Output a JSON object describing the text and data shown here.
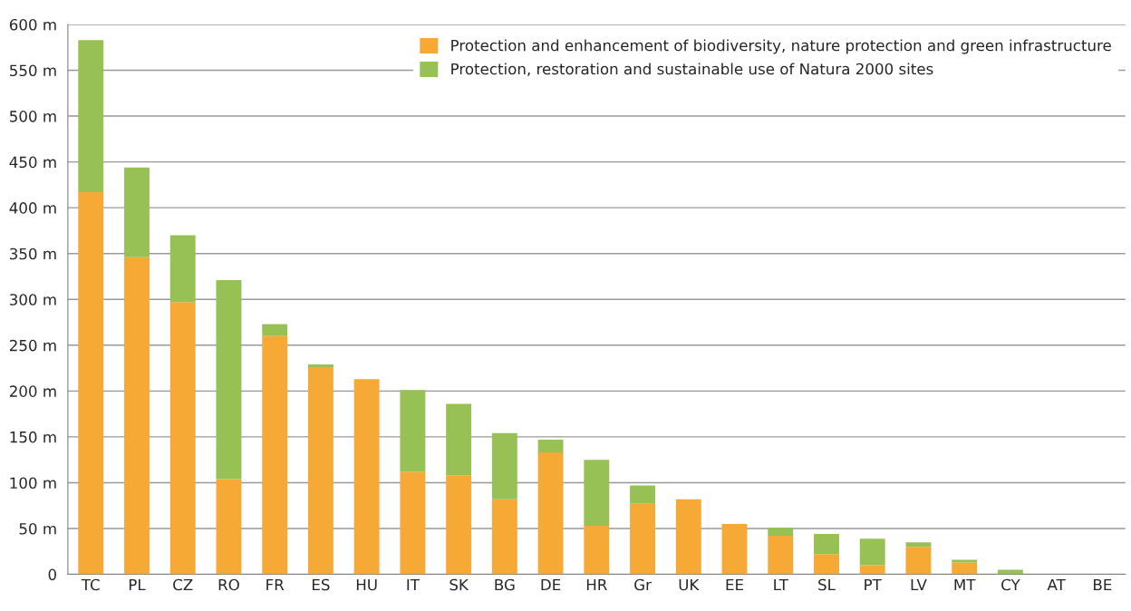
{
  "chart_data": {
    "type": "bar",
    "stacked": true,
    "categories": [
      "TC",
      "PL",
      "CZ",
      "RO",
      "FR",
      "ES",
      "HU",
      "IT",
      "SK",
      "BG",
      "DE",
      "HR",
      "Gr",
      "UK",
      "EE",
      "LT",
      "SL",
      "PT",
      "LV",
      "MT",
      "CY",
      "AT",
      "BE"
    ],
    "series": [
      {
        "name": "Protection and enhancement of biodiversity, nature protection and green infrastructure",
        "color": "#f6a935",
        "values": [
          417,
          346,
          297,
          104,
          260,
          226,
          213,
          112,
          108,
          82,
          133,
          53,
          77,
          82,
          55,
          42,
          22,
          10,
          30,
          13,
          0,
          0,
          0
        ]
      },
      {
        "name": "Protection, restoration and sustainable use of Natura 2000 sites",
        "color": "#97c155",
        "values": [
          166,
          98,
          73,
          217,
          13,
          3,
          0,
          89,
          78,
          72,
          14,
          72,
          20,
          0,
          0,
          9,
          22,
          29,
          5,
          3,
          5,
          0,
          0
        ]
      }
    ],
    "ylim": [
      0,
      600
    ],
    "yticks": [
      0,
      {
        "value": 50,
        "label": "50 m"
      },
      {
        "value": 100,
        "label": "100 m"
      },
      {
        "value": 150,
        "label": "150 m"
      },
      {
        "value": 200,
        "label": "200 m"
      },
      {
        "value": 250,
        "label": "250 m"
      },
      {
        "value": 300,
        "label": "300 m"
      },
      {
        "value": 350,
        "label": "350 m"
      },
      {
        "value": 400,
        "label": "400 m"
      },
      {
        "value": 450,
        "label": "450 m"
      },
      {
        "value": 500,
        "label": "500 m"
      },
      {
        "value": 550,
        "label": "550 m"
      },
      {
        "value": 600,
        "label": "600 m"
      }
    ],
    "grid": "y",
    "legend": "top right"
  }
}
